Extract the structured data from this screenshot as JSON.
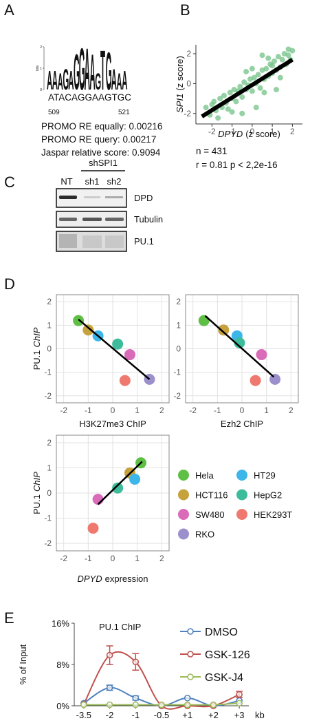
{
  "panel_labels": [
    "A",
    "B",
    "C",
    "D",
    "E"
  ],
  "motif": {
    "letters": [
      "A",
      "A",
      "A",
      "G",
      "A",
      "G",
      "G",
      "A",
      "A",
      "G",
      "T",
      "G",
      "A",
      "A",
      "A"
    ],
    "bits": [
      0.9,
      0.9,
      0.8,
      1.0,
      0.9,
      1.7,
      2.0,
      2.0,
      1.7,
      0.8,
      1.9,
      1.8,
      1.0,
      0.8,
      0.9
    ],
    "ylim": [
      0,
      2
    ],
    "yticks": [
      0,
      1,
      2
    ],
    "ylabel": "bits",
    "sequence": "ATACAGGAAGTGC",
    "start": 509,
    "end": 521,
    "scores": [
      "PROMO RE equally: 0.00216",
      "PROMO RE query: 0.00217",
      "Jaspar relative score: 0.9094"
    ]
  },
  "blot": {
    "lanes": [
      "NT",
      "sh1",
      "sh2"
    ],
    "group": "shSPI1",
    "proteins": [
      "DPD",
      "Tubulin",
      "PU.1"
    ]
  },
  "stats": [
    "n = 431",
    "r = 0.81 p < 2,2e-16"
  ],
  "legend": {
    "names": [
      "Hela",
      "HCT116",
      "SW480",
      "RKO",
      "HT29",
      "HepG2",
      "HEK293T"
    ],
    "colors": [
      "#5fbf45",
      "#c6a23c",
      "#d96bb9",
      "#9c90cc",
      "#3db6ea",
      "#3dbc9c",
      "#f0796f"
    ]
  },
  "chart_data": [
    {
      "type": "scatter",
      "color": "#72c285",
      "grid": false,
      "xlabel": [
        "DPYD",
        "(z score)"
      ],
      "ylabel": [
        "SPI1",
        "(z score)"
      ],
      "xlim": [
        -2.8,
        2.5
      ],
      "ylim": [
        -2.7,
        2.6
      ],
      "xticks": [
        -2,
        -1,
        0,
        1,
        2
      ],
      "yticks": [
        -2,
        0,
        2
      ],
      "x": [
        -2.3,
        -2.1,
        -1.9,
        -1.8,
        -1.6,
        -1.5,
        -1.4,
        -1.3,
        -1.2,
        -1.1,
        -1.0,
        -0.9,
        -0.8,
        -0.7,
        -0.6,
        -0.5,
        -0.4,
        -0.3,
        -0.2,
        -0.1,
        0.0,
        0.1,
        0.2,
        0.3,
        0.4,
        0.5,
        0.6,
        0.7,
        0.8,
        0.9,
        1.0,
        1.1,
        1.2,
        1.3,
        1.4,
        1.5,
        1.6,
        1.7,
        1.8,
        1.9,
        2.0,
        -1.7,
        -1.0,
        -0.5,
        0.2,
        0.6,
        1.0,
        1.4,
        1.8,
        -0.3,
        0.8,
        1.2,
        -2.0,
        0.0,
        0.5
      ],
      "y": [
        -1.6,
        -2.1,
        -1.2,
        -1.8,
        -1.0,
        -1.6,
        -0.8,
        -1.3,
        -1.7,
        -0.6,
        -1.0,
        -0.4,
        -1.2,
        -0.5,
        -0.2,
        -0.9,
        0.1,
        -0.4,
        -0.1,
        0.3,
        -0.5,
        0.4,
        0.0,
        0.6,
        -0.3,
        0.9,
        0.3,
        1.0,
        0.5,
        1.3,
        0.7,
        1.5,
        0.9,
        1.8,
        1.1,
        1.6,
        2.0,
        1.3,
        1.9,
        1.6,
        2.2,
        -2.3,
        -1.9,
        -2.0,
        -1.6,
        -0.6,
        1.2,
        0.4,
        2.3,
        0.8,
        1.7,
        -0.4,
        -1.4,
        1.0,
        1.9
      ],
      "fit_line": {
        "x": [
          -2.5,
          2.0
        ],
        "y": [
          -2.2,
          1.6
        ]
      }
    },
    {
      "type": "scatter",
      "grid": true,
      "xlabel": [
        "H3K27me3 ChIP"
      ],
      "ylabel": [
        "PU.1",
        "ChIP"
      ],
      "xlim": [
        -2.3,
        2.3
      ],
      "ylim": [
        -2.3,
        2.3
      ],
      "xticks": [
        -2,
        -1,
        0,
        1,
        2
      ],
      "yticks": [
        -2,
        -1,
        0,
        1,
        2
      ],
      "x": [
        -1.4,
        -1.0,
        0.7,
        1.5,
        -0.6,
        0.2,
        0.5
      ],
      "y": [
        1.2,
        0.8,
        -0.25,
        -1.3,
        0.55,
        0.2,
        -1.35
      ],
      "fit_line": {
        "x": [
          -1.4,
          1.5
        ],
        "y": [
          1.25,
          -1.3
        ]
      }
    },
    {
      "type": "scatter",
      "grid": true,
      "xlabel": [
        "Ezh2 ChIP"
      ],
      "xlim": [
        -2.3,
        2.3
      ],
      "ylim": [
        -2.3,
        2.3
      ],
      "xticks": [
        -2,
        -1,
        0,
        1,
        2
      ],
      "yticks": [
        -2,
        -1,
        0,
        1,
        2
      ],
      "x": [
        -1.55,
        -0.75,
        0.8,
        1.35,
        -0.2,
        -0.1,
        0.55
      ],
      "y": [
        1.2,
        0.8,
        -0.25,
        -1.3,
        0.55,
        0.25,
        -1.35
      ],
      "fit_line": {
        "x": [
          -1.5,
          1.3
        ],
        "y": [
          1.4,
          -1.2
        ]
      }
    },
    {
      "type": "scatter",
      "grid": true,
      "xlabel": [
        "DPYD",
        "expression"
      ],
      "ylabel": [
        "PU.1",
        "ChIP"
      ],
      "xlim": [
        -2.3,
        2.3
      ],
      "ylim": [
        -2.3,
        2.3
      ],
      "xticks": [
        -2,
        -1,
        0,
        1,
        2
      ],
      "yticks": [
        -2,
        -1,
        0,
        1,
        2
      ],
      "x": [
        1.15,
        0.7,
        -0.6,
        null,
        0.9,
        0.2,
        -0.8
      ],
      "y": [
        1.2,
        0.8,
        -0.25,
        null,
        0.55,
        0.2,
        -1.4
      ],
      "fit_line": {
        "x": [
          -0.6,
          1.2
        ],
        "y": [
          -0.45,
          1.25
        ]
      }
    },
    {
      "type": "line",
      "title": "PU.1 ChIP",
      "ylabel": "% of Input",
      "xunit": "kb",
      "categories": [
        "-3.5",
        "-2",
        "-1",
        "-0.5",
        "+1",
        "+2",
        "+3"
      ],
      "ylim": [
        0,
        16
      ],
      "yticks": [
        {
          "value": 0,
          "label": "0%"
        },
        {
          "value": 8,
          "label": "8%"
        },
        {
          "value": 16,
          "label": "16%"
        }
      ],
      "series": [
        {
          "name": "DMSO",
          "color": "#4f81bd",
          "values": [
            0.5,
            3.5,
            1.5,
            0,
            1.5,
            0,
            1.0
          ],
          "errors": [
            null,
            0.5,
            0.4,
            null,
            null,
            null,
            null
          ]
        },
        {
          "name": "GSK-126",
          "color": "#c0504d",
          "values": [
            0.3,
            9.8,
            8.5,
            0,
            0,
            0,
            2.2
          ],
          "errors": [
            null,
            1.8,
            1.6,
            null,
            null,
            null,
            0.6
          ]
        },
        {
          "name": "GSK-J4",
          "color": "#9bbb59",
          "values": [
            0.2,
            0.2,
            0.2,
            0.2,
            0.2,
            0.2,
            0.5
          ],
          "errors": [
            null,
            null,
            null,
            null,
            null,
            null,
            null
          ]
        }
      ]
    }
  ]
}
